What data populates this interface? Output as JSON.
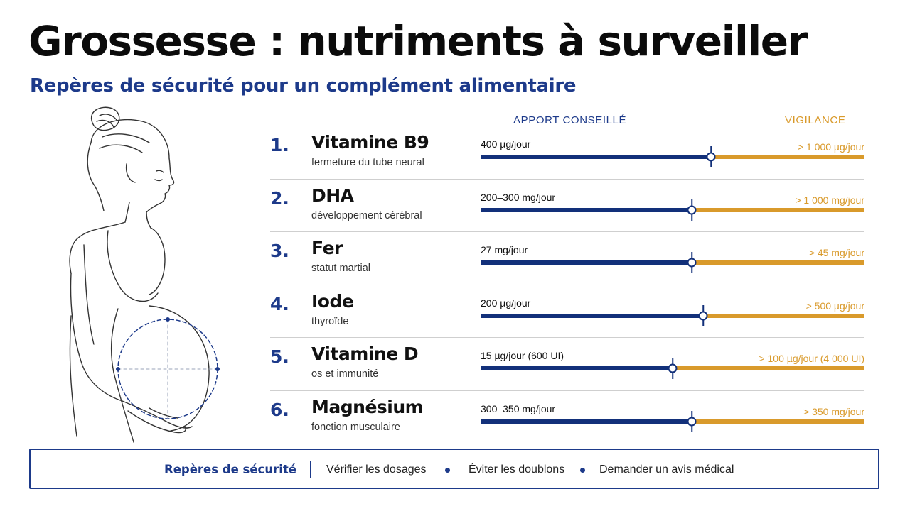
{
  "title": "Grossesse : nutriments à surveiller",
  "subtitle": "Repères de sécurité pour un complément alimentaire",
  "columns": {
    "advised": "APPORT CONSEILLÉ",
    "vigilance": "VIGILANCE"
  },
  "colors": {
    "advised": "#12307a",
    "vigilance": "#d99a2b",
    "accent": "#1d3a8a"
  },
  "nutrients": [
    {
      "number": "1.",
      "name": "Vitamine B9",
      "description": "fermeture du tube neural",
      "advised": "400 µg/jour",
      "vigilance": "> 1 000 µg/jour",
      "advised_fraction": 0.6
    },
    {
      "number": "2.",
      "name": "DHA",
      "description": "développement cérébral",
      "advised": "200–300 mg/jour",
      "vigilance": "> 1 000 mg/jour",
      "advised_fraction": 0.55
    },
    {
      "number": "3.",
      "name": "Fer",
      "description": "statut martial",
      "advised": "27 mg/jour",
      "vigilance": "> 45 mg/jour",
      "advised_fraction": 0.55
    },
    {
      "number": "4.",
      "name": "Iode",
      "description": "thyroïde",
      "advised": "200 µg/jour",
      "vigilance": "> 500 µg/jour",
      "advised_fraction": 0.58
    },
    {
      "number": "5.",
      "name": "Vitamine D",
      "description": "os et immunité",
      "advised": "15 µg/jour (600 UI)",
      "vigilance": "> 100 µg/jour (4 000 UI)",
      "advised_fraction": 0.5
    },
    {
      "number": "6.",
      "name": "Magnésium",
      "description": "fonction musculaire",
      "advised": "300–350 mg/jour",
      "vigilance": "> 350 mg/jour",
      "advised_fraction": 0.55
    }
  ],
  "footer": {
    "label": "Repères de sécurité",
    "items": [
      "Vérifier les dosages",
      "Éviter les doublons",
      "Demander un avis médical"
    ]
  }
}
